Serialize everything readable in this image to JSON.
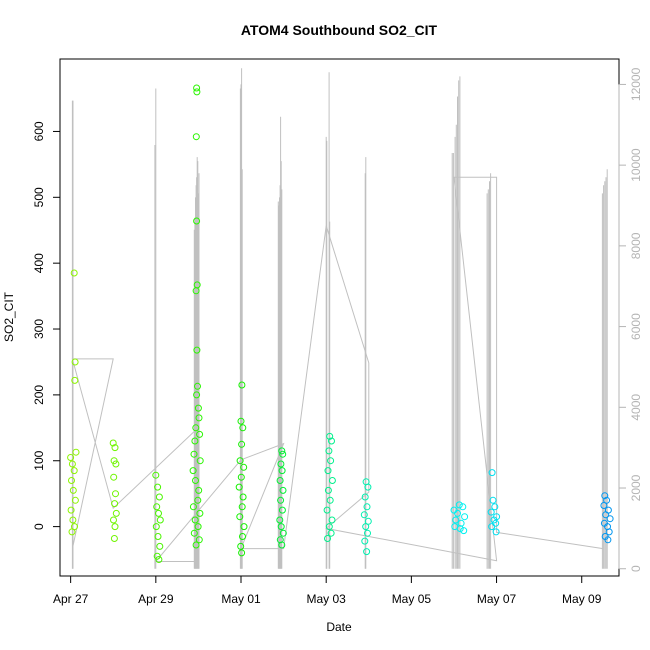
{
  "chart_data": {
    "type": "scatter",
    "title": "ATOM4 Southbound SO2_CIT",
    "xlabel": "Date",
    "ylabel": "SO2_CIT",
    "x_range_days": [
      "2017-04-26T18:00",
      "2017-05-09T21:00"
    ],
    "ylim": [
      -75,
      710
    ],
    "y2lim": [
      -180,
      12630
    ],
    "x_ticks": [
      {
        "date": "2017-04-27",
        "label": "Apr 27"
      },
      {
        "date": "2017-04-29",
        "label": "Apr 29"
      },
      {
        "date": "2017-05-01",
        "label": "May 01"
      },
      {
        "date": "2017-05-03",
        "label": "May 03"
      },
      {
        "date": "2017-05-05",
        "label": "May 05"
      },
      {
        "date": "2017-05-07",
        "label": "May 07"
      },
      {
        "date": "2017-05-09",
        "label": "May 09"
      }
    ],
    "y_ticks": [
      0,
      100,
      200,
      300,
      400,
      500,
      600
    ],
    "y2_ticks": [
      0,
      2000,
      4000,
      6000,
      8000,
      10000,
      12000
    ],
    "grid": false,
    "series": [
      {
        "color": "#8cf500",
        "points": [
          {
            "x": "2017-04-27T02:00",
            "y": 385
          },
          {
            "x": "2017-04-27T02:30",
            "y": 250
          },
          {
            "x": "2017-04-27T02:20",
            "y": 222
          },
          {
            "x": "2017-04-27T03:00",
            "y": 113
          },
          {
            "x": "2017-04-27T00:00",
            "y": 105
          },
          {
            "x": "2017-04-27T01:00",
            "y": 95
          },
          {
            "x": "2017-04-27T02:00",
            "y": 85
          },
          {
            "x": "2017-04-27T00:30",
            "y": 70
          },
          {
            "x": "2017-04-27T01:30",
            "y": 55
          },
          {
            "x": "2017-04-27T02:40",
            "y": 40
          },
          {
            "x": "2017-04-27T00:15",
            "y": 25
          },
          {
            "x": "2017-04-27T01:15",
            "y": 10
          },
          {
            "x": "2017-04-27T02:10",
            "y": 0
          },
          {
            "x": "2017-04-27T00:45",
            "y": -8
          }
        ]
      },
      {
        "color": "#70f500",
        "points": [
          {
            "x": "2017-04-28T00:00",
            "y": 127
          },
          {
            "x": "2017-04-28T01:00",
            "y": 120
          },
          {
            "x": "2017-04-28T00:30",
            "y": 100
          },
          {
            "x": "2017-04-28T01:30",
            "y": 95
          },
          {
            "x": "2017-04-28T00:15",
            "y": 75
          },
          {
            "x": "2017-04-28T01:15",
            "y": 50
          },
          {
            "x": "2017-04-28T00:45",
            "y": 35
          },
          {
            "x": "2017-04-28T01:45",
            "y": 20
          },
          {
            "x": "2017-04-28T00:10",
            "y": 10
          },
          {
            "x": "2017-04-28T01:00",
            "y": 0
          },
          {
            "x": "2017-04-28T00:40",
            "y": -18
          }
        ]
      },
      {
        "color": "#4af500",
        "points": [
          {
            "x": "2017-04-29T00:00",
            "y": 78
          },
          {
            "x": "2017-04-29T01:00",
            "y": 60
          },
          {
            "x": "2017-04-29T02:00",
            "y": 45
          },
          {
            "x": "2017-04-29T00:30",
            "y": 30
          },
          {
            "x": "2017-04-29T01:30",
            "y": 20
          },
          {
            "x": "2017-04-29T02:30",
            "y": 10
          },
          {
            "x": "2017-04-29T00:15",
            "y": 0
          },
          {
            "x": "2017-04-29T01:15",
            "y": -15
          },
          {
            "x": "2017-04-29T02:15",
            "y": -30
          },
          {
            "x": "2017-04-29T00:45",
            "y": -45
          },
          {
            "x": "2017-04-29T01:45",
            "y": -50
          }
        ]
      },
      {
        "color": "#2af500",
        "points": [
          {
            "x": "2017-04-29T23:00",
            "y": 666
          },
          {
            "x": "2017-04-29T23:10",
            "y": 660
          },
          {
            "x": "2017-04-29T22:50",
            "y": 592
          },
          {
            "x": "2017-04-29T23:00",
            "y": 464
          },
          {
            "x": "2017-04-29T23:20",
            "y": 367
          },
          {
            "x": "2017-04-29T22:40",
            "y": 358
          },
          {
            "x": "2017-04-29T23:10",
            "y": 268
          },
          {
            "x": "2017-04-29T23:30",
            "y": 213
          },
          {
            "x": "2017-04-29T23:00",
            "y": 200
          },
          {
            "x": "2017-04-30T00:00",
            "y": 180
          },
          {
            "x": "2017-04-30T00:20",
            "y": 165
          },
          {
            "x": "2017-04-29T22:30",
            "y": 150
          },
          {
            "x": "2017-04-30T00:40",
            "y": 140
          },
          {
            "x": "2017-04-29T22:00",
            "y": 130
          },
          {
            "x": "2017-04-29T21:30",
            "y": 110
          },
          {
            "x": "2017-04-30T01:00",
            "y": 100
          },
          {
            "x": "2017-04-29T21:00",
            "y": 85
          },
          {
            "x": "2017-04-29T22:20",
            "y": 70
          },
          {
            "x": "2017-04-30T00:10",
            "y": 55
          },
          {
            "x": "2017-04-29T23:40",
            "y": 40
          },
          {
            "x": "2017-04-29T21:10",
            "y": 30
          },
          {
            "x": "2017-04-30T00:50",
            "y": 20
          },
          {
            "x": "2017-04-29T22:10",
            "y": 10
          },
          {
            "x": "2017-04-29T23:50",
            "y": 0
          },
          {
            "x": "2017-04-29T21:40",
            "y": -10
          },
          {
            "x": "2017-04-30T00:30",
            "y": -20
          },
          {
            "x": "2017-04-29T22:40",
            "y": -28
          }
        ]
      },
      {
        "color": "#14f000",
        "points": [
          {
            "x": "2017-05-01T00:30",
            "y": 215
          },
          {
            "x": "2017-05-01T00:00",
            "y": 160
          },
          {
            "x": "2017-05-01T01:00",
            "y": 150
          },
          {
            "x": "2017-05-01T00:20",
            "y": 125
          },
          {
            "x": "2017-04-30T23:30",
            "y": 100
          },
          {
            "x": "2017-05-01T01:30",
            "y": 90
          },
          {
            "x": "2017-05-01T00:10",
            "y": 75
          },
          {
            "x": "2017-04-30T23:00",
            "y": 60
          },
          {
            "x": "2017-05-01T01:10",
            "y": 45
          },
          {
            "x": "2017-05-01T00:40",
            "y": 30
          },
          {
            "x": "2017-04-30T23:20",
            "y": 15
          },
          {
            "x": "2017-05-01T01:40",
            "y": 0
          },
          {
            "x": "2017-05-01T00:50",
            "y": -15
          },
          {
            "x": "2017-04-30T23:50",
            "y": -30
          },
          {
            "x": "2017-05-01T00:20",
            "y": -40
          }
        ]
      },
      {
        "color": "#00f032",
        "points": [
          {
            "x": "2017-05-01T23:00",
            "y": 115
          },
          {
            "x": "2017-05-01T23:30",
            "y": 110
          },
          {
            "x": "2017-05-01T22:30",
            "y": 95
          },
          {
            "x": "2017-05-01T23:10",
            "y": 85
          },
          {
            "x": "2017-05-01T22:00",
            "y": 70
          },
          {
            "x": "2017-05-01T23:40",
            "y": 55
          },
          {
            "x": "2017-05-01T22:20",
            "y": 40
          },
          {
            "x": "2017-05-01T23:20",
            "y": 25
          },
          {
            "x": "2017-05-01T21:50",
            "y": 10
          },
          {
            "x": "2017-05-01T22:40",
            "y": 0
          },
          {
            "x": "2017-05-01T23:50",
            "y": -10
          },
          {
            "x": "2017-05-01T22:10",
            "y": -20
          },
          {
            "x": "2017-05-01T23:00",
            "y": -28
          }
        ]
      },
      {
        "color": "#00f08c",
        "points": [
          {
            "x": "2017-05-03T02:00",
            "y": 137
          },
          {
            "x": "2017-05-03T03:00",
            "y": 130
          },
          {
            "x": "2017-05-03T01:30",
            "y": 115
          },
          {
            "x": "2017-05-03T02:30",
            "y": 100
          },
          {
            "x": "2017-05-03T01:00",
            "y": 85
          },
          {
            "x": "2017-05-03T03:30",
            "y": 70
          },
          {
            "x": "2017-05-03T01:15",
            "y": 55
          },
          {
            "x": "2017-05-03T02:15",
            "y": 40
          },
          {
            "x": "2017-05-03T00:30",
            "y": 25
          },
          {
            "x": "2017-05-03T03:15",
            "y": 10
          },
          {
            "x": "2017-05-03T01:45",
            "y": 0
          },
          {
            "x": "2017-05-03T02:45",
            "y": -10
          },
          {
            "x": "2017-05-03T00:45",
            "y": -18
          }
        ]
      },
      {
        "color": "#00f0b0",
        "points": [
          {
            "x": "2017-05-03T22:30",
            "y": 68
          },
          {
            "x": "2017-05-03T23:30",
            "y": 60
          },
          {
            "x": "2017-05-03T22:00",
            "y": 45
          },
          {
            "x": "2017-05-03T23:00",
            "y": 30
          },
          {
            "x": "2017-05-03T21:30",
            "y": 18
          },
          {
            "x": "2017-05-03T23:45",
            "y": 8
          },
          {
            "x": "2017-05-03T22:15",
            "y": 0
          },
          {
            "x": "2017-05-03T23:15",
            "y": -10
          },
          {
            "x": "2017-05-03T21:45",
            "y": -22
          },
          {
            "x": "2017-05-03T22:45",
            "y": -38
          }
        ]
      },
      {
        "color": "#00f0f0",
        "points": [
          {
            "x": "2017-05-06T03:00",
            "y": 33
          },
          {
            "x": "2017-05-06T05:00",
            "y": 30
          },
          {
            "x": "2017-05-06T00:00",
            "y": 25
          },
          {
            "x": "2017-05-06T02:00",
            "y": 20
          },
          {
            "x": "2017-05-06T06:00",
            "y": 15
          },
          {
            "x": "2017-05-06T01:00",
            "y": 10
          },
          {
            "x": "2017-05-06T04:00",
            "y": 5
          },
          {
            "x": "2017-05-06T00:30",
            "y": 0
          },
          {
            "x": "2017-05-06T03:30",
            "y": -3
          },
          {
            "x": "2017-05-06T05:30",
            "y": -6
          }
        ]
      },
      {
        "color": "#00e0f0",
        "points": [
          {
            "x": "2017-05-06T21:30",
            "y": 82
          },
          {
            "x": "2017-05-06T22:00",
            "y": 40
          },
          {
            "x": "2017-05-06T23:00",
            "y": 30
          },
          {
            "x": "2017-05-06T21:00",
            "y": 22
          },
          {
            "x": "2017-05-07T00:00",
            "y": 15
          },
          {
            "x": "2017-05-06T22:30",
            "y": 10
          },
          {
            "x": "2017-05-06T23:30",
            "y": 5
          },
          {
            "x": "2017-05-06T21:15",
            "y": 0
          },
          {
            "x": "2017-05-06T23:45",
            "y": -8
          }
        ]
      },
      {
        "color": "#0096f0",
        "points": [
          {
            "x": "2017-05-09T13:00",
            "y": 47
          },
          {
            "x": "2017-05-09T14:00",
            "y": 40
          },
          {
            "x": "2017-05-09T12:30",
            "y": 32
          },
          {
            "x": "2017-05-09T15:00",
            "y": 25
          },
          {
            "x": "2017-05-09T13:30",
            "y": 18
          },
          {
            "x": "2017-05-09T16:00",
            "y": 12
          },
          {
            "x": "2017-05-09T12:45",
            "y": 5
          },
          {
            "x": "2017-05-09T14:30",
            "y": 0
          },
          {
            "x": "2017-05-09T15:30",
            "y": -8
          },
          {
            "x": "2017-05-09T13:15",
            "y": -15
          },
          {
            "x": "2017-05-09T14:45",
            "y": -20
          }
        ]
      }
    ],
    "secondary_series": {
      "color": "#c0c0c0",
      "axis": "right",
      "spikes": [
        {
          "x": "2017-04-27T01:00",
          "y": 11600
        },
        {
          "x": "2017-04-27T01:20",
          "y": 11600
        },
        {
          "x": "2017-04-28T23:30",
          "y": 10500
        },
        {
          "x": "2017-04-29T00:00",
          "y": 11900
        },
        {
          "x": "2017-04-29T21:40",
          "y": 8400
        },
        {
          "x": "2017-04-29T22:00",
          "y": 8700
        },
        {
          "x": "2017-04-29T22:20",
          "y": 9200
        },
        {
          "x": "2017-04-29T22:40",
          "y": 9500
        },
        {
          "x": "2017-04-29T23:00",
          "y": 9700
        },
        {
          "x": "2017-04-29T23:20",
          "y": 10200
        },
        {
          "x": "2017-04-29T23:40",
          "y": 10100
        },
        {
          "x": "2017-04-30T00:00",
          "y": 9300
        },
        {
          "x": "2017-04-30T00:20",
          "y": 9800
        },
        {
          "x": "2017-04-30T23:40",
          "y": 11900
        },
        {
          "x": "2017-05-01T00:00",
          "y": 12000
        },
        {
          "x": "2017-05-01T00:20",
          "y": 12400
        },
        {
          "x": "2017-05-01T00:40",
          "y": 9900
        },
        {
          "x": "2017-05-01T21:00",
          "y": 9100
        },
        {
          "x": "2017-05-01T21:20",
          "y": 9000
        },
        {
          "x": "2017-05-01T21:40",
          "y": 9200
        },
        {
          "x": "2017-05-01T22:00",
          "y": 9500
        },
        {
          "x": "2017-05-01T22:20",
          "y": 11200
        },
        {
          "x": "2017-05-01T22:40",
          "y": 10100
        },
        {
          "x": "2017-05-01T23:00",
          "y": 9400
        },
        {
          "x": "2017-05-03T00:00",
          "y": 10700
        },
        {
          "x": "2017-05-03T00:20",
          "y": 10600
        },
        {
          "x": "2017-05-03T01:40",
          "y": 12300
        },
        {
          "x": "2017-05-03T02:00",
          "y": 8600
        },
        {
          "x": "2017-05-03T22:00",
          "y": 9800
        },
        {
          "x": "2017-05-03T22:20",
          "y": 10200
        },
        {
          "x": "2017-05-05T23:00",
          "y": 10300
        },
        {
          "x": "2017-05-05T23:40",
          "y": 10300
        },
        {
          "x": "2017-05-06T00:40",
          "y": 10700
        },
        {
          "x": "2017-05-06T01:20",
          "y": 11000
        },
        {
          "x": "2017-05-06T02:00",
          "y": 11700
        },
        {
          "x": "2017-05-06T02:40",
          "y": 12100
        },
        {
          "x": "2017-05-06T03:20",
          "y": 12200
        },
        {
          "x": "2017-05-06T18:40",
          "y": 9300
        },
        {
          "x": "2017-05-06T19:20",
          "y": 9400
        },
        {
          "x": "2017-05-06T20:00",
          "y": 9600
        },
        {
          "x": "2017-05-06T20:40",
          "y": 9800
        },
        {
          "x": "2017-05-09T11:40",
          "y": 9300
        },
        {
          "x": "2017-05-09T12:20",
          "y": 9500
        },
        {
          "x": "2017-05-09T13:00",
          "y": 9600
        },
        {
          "x": "2017-05-09T13:40",
          "y": 9700
        },
        {
          "x": "2017-05-09T14:20",
          "y": 9900
        }
      ],
      "track": [
        {
          "x": "2017-04-27T01:00",
          "y": 500
        },
        {
          "x": "2017-04-28T00:00",
          "y": 5200
        },
        {
          "x": "2017-04-27T01:00",
          "y": 5200
        },
        {
          "x": "2017-04-28T00:00",
          "y": 1500
        },
        {
          "x": "2017-04-30T00:00",
          "y": 3500
        },
        {
          "x": "2017-04-30T00:00",
          "y": 180
        },
        {
          "x": "2017-04-29T00:00",
          "y": 180
        },
        {
          "x": "2017-05-01T00:00",
          "y": 2700
        },
        {
          "x": "2017-05-02T00:00",
          "y": 3100
        },
        {
          "x": "2017-05-01T00:00",
          "y": 500
        },
        {
          "x": "2017-05-02T00:00",
          "y": 500
        },
        {
          "x": "2017-05-03T00:00",
          "y": 8500
        },
        {
          "x": "2017-05-04T00:00",
          "y": 5100
        },
        {
          "x": "2017-05-04T00:00",
          "y": 1900
        },
        {
          "x": "2017-05-03T00:00",
          "y": 1000
        },
        {
          "x": "2017-05-07T00:00",
          "y": 200
        },
        {
          "x": "2017-05-06T00:00",
          "y": 9700
        },
        {
          "x": "2017-05-07T00:00",
          "y": 9700
        },
        {
          "x": "2017-05-07T00:00",
          "y": 900
        },
        {
          "x": "2017-05-09T12:00",
          "y": 500
        }
      ]
    }
  }
}
